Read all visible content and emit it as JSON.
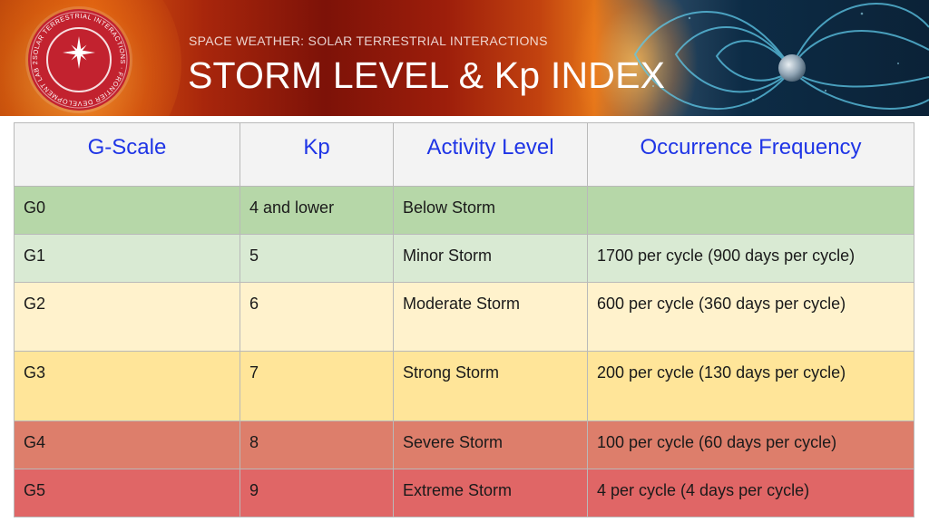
{
  "header": {
    "subtitle": "SPACE WEATHER: SOLAR TERRESTRIAL INTERACTIONS",
    "title": "STORM LEVEL & Kp INDEX",
    "logo_text": "SOLAR TERRESTRIAL INTERACTIONS · FRONTIER DEVELOPMENT LAB 2017"
  },
  "table": {
    "columns": [
      "G-Scale",
      "Kp",
      "Activity Level",
      "Occurrence Frequency"
    ],
    "rows": [
      {
        "g_scale": "G0",
        "kp": "4 and lower",
        "activity": "Below Storm",
        "frequency": "",
        "color": "#b6d7a8"
      },
      {
        "g_scale": "G1",
        "kp": "5",
        "activity": "Minor Storm",
        "frequency": "1700 per cycle (900 days per cycle)",
        "color": "#d9ead3"
      },
      {
        "g_scale": "G2",
        "kp": "6",
        "activity": "Moderate Storm",
        "frequency": "600 per cycle (360 days per cycle)",
        "color": "#fff2cc"
      },
      {
        "g_scale": "G3",
        "kp": "7",
        "activity": "Strong Storm",
        "frequency": "200 per cycle (130 days per cycle)",
        "color": "#ffe599"
      },
      {
        "g_scale": "G4",
        "kp": "8",
        "activity": "Severe Storm",
        "frequency": "100 per cycle (60 days per cycle)",
        "color": "#dd7e6b"
      },
      {
        "g_scale": "G5",
        "kp": "9",
        "activity": "Extreme Storm",
        "frequency": "4 per cycle (4 days per cycle)",
        "color": "#e06666"
      }
    ]
  },
  "colors": {
    "header_text": "#1f35e6",
    "header_bg": "#f3f3f3",
    "border": "#b9b9b9",
    "logo_red": "#c2222f"
  }
}
